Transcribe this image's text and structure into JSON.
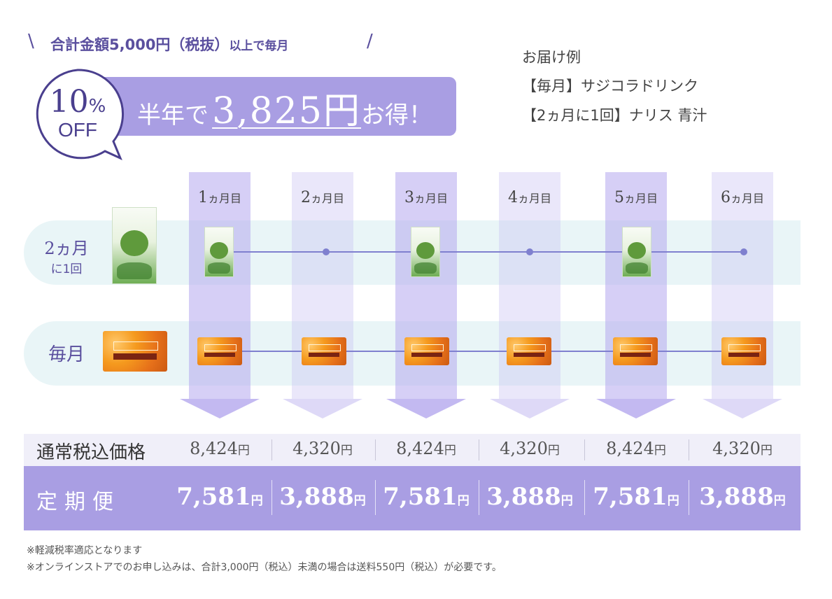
{
  "header": {
    "headline_main": "合計金額5,000円（税抜）",
    "headline_tail": "以上で毎月",
    "slash_left": "\\",
    "slash_right": "/",
    "banner_pre": "半年で",
    "banner_amount": "3,825円",
    "banner_post": "お得！",
    "badge_number": "10",
    "badge_percent": "%",
    "badge_off": "OFF"
  },
  "example": {
    "title": "お届け例",
    "lines": [
      "【毎月】サジコラドリンク",
      "【2ヵ月に1回】ナリス 青汁"
    ]
  },
  "rows": {
    "bimonthly_label_top": "2ヵ月",
    "bimonthly_label_bottom": "に1回",
    "monthly_label": "毎月"
  },
  "months": [
    {
      "num": "1",
      "suffix": "ヵ月目"
    },
    {
      "num": "2",
      "suffix": "ヵ月目"
    },
    {
      "num": "3",
      "suffix": "ヵ月目"
    },
    {
      "num": "4",
      "suffix": "ヵ月目"
    },
    {
      "num": "5",
      "suffix": "ヵ月目"
    },
    {
      "num": "6",
      "suffix": "ヵ月目"
    }
  ],
  "prices": {
    "regular_label": "通常税込価格",
    "subscription_label": "定期便",
    "yen": "円",
    "regular": [
      "8,424",
      "4,320",
      "8,424",
      "4,320",
      "8,424",
      "4,320"
    ],
    "subscription": [
      "7,581",
      "3,888",
      "7,581",
      "3,888",
      "7,581",
      "3,888"
    ]
  },
  "notes": [
    "※軽減税率適応となります",
    "※オンラインストアでのお申し込みは、合計3,000円（税込）未満の場合は送料550円（税込）が必要です。"
  ],
  "colors": {
    "accent_purple": "#a99ee3",
    "deep_purple": "#5a4f9e",
    "band": "#e9f5f7",
    "line": "#7f80cf"
  }
}
